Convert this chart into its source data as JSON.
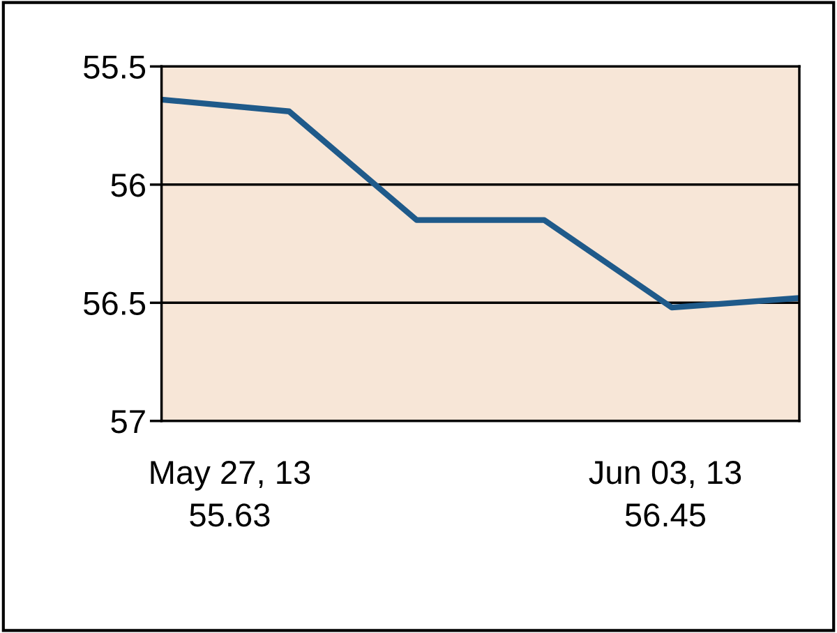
{
  "chart_data": {
    "type": "line",
    "categories": [
      null,
      null,
      null,
      null,
      null,
      null
    ],
    "series": [
      {
        "color": "#1f5a8a",
        "values": [
          55.64,
          55.69,
          56.15,
          56.15,
          56.52,
          56.48
        ]
      }
    ],
    "ylim": [
      57,
      55.5
    ],
    "yticks": [
      55.5,
      56,
      56.5,
      57
    ],
    "grid": "y",
    "marker": "none",
    "line_style": "solid",
    "legend": false,
    "annotations": [
      "May 27, 13\n55.63",
      "Jun 03, 13\n56.45"
    ]
  }
}
